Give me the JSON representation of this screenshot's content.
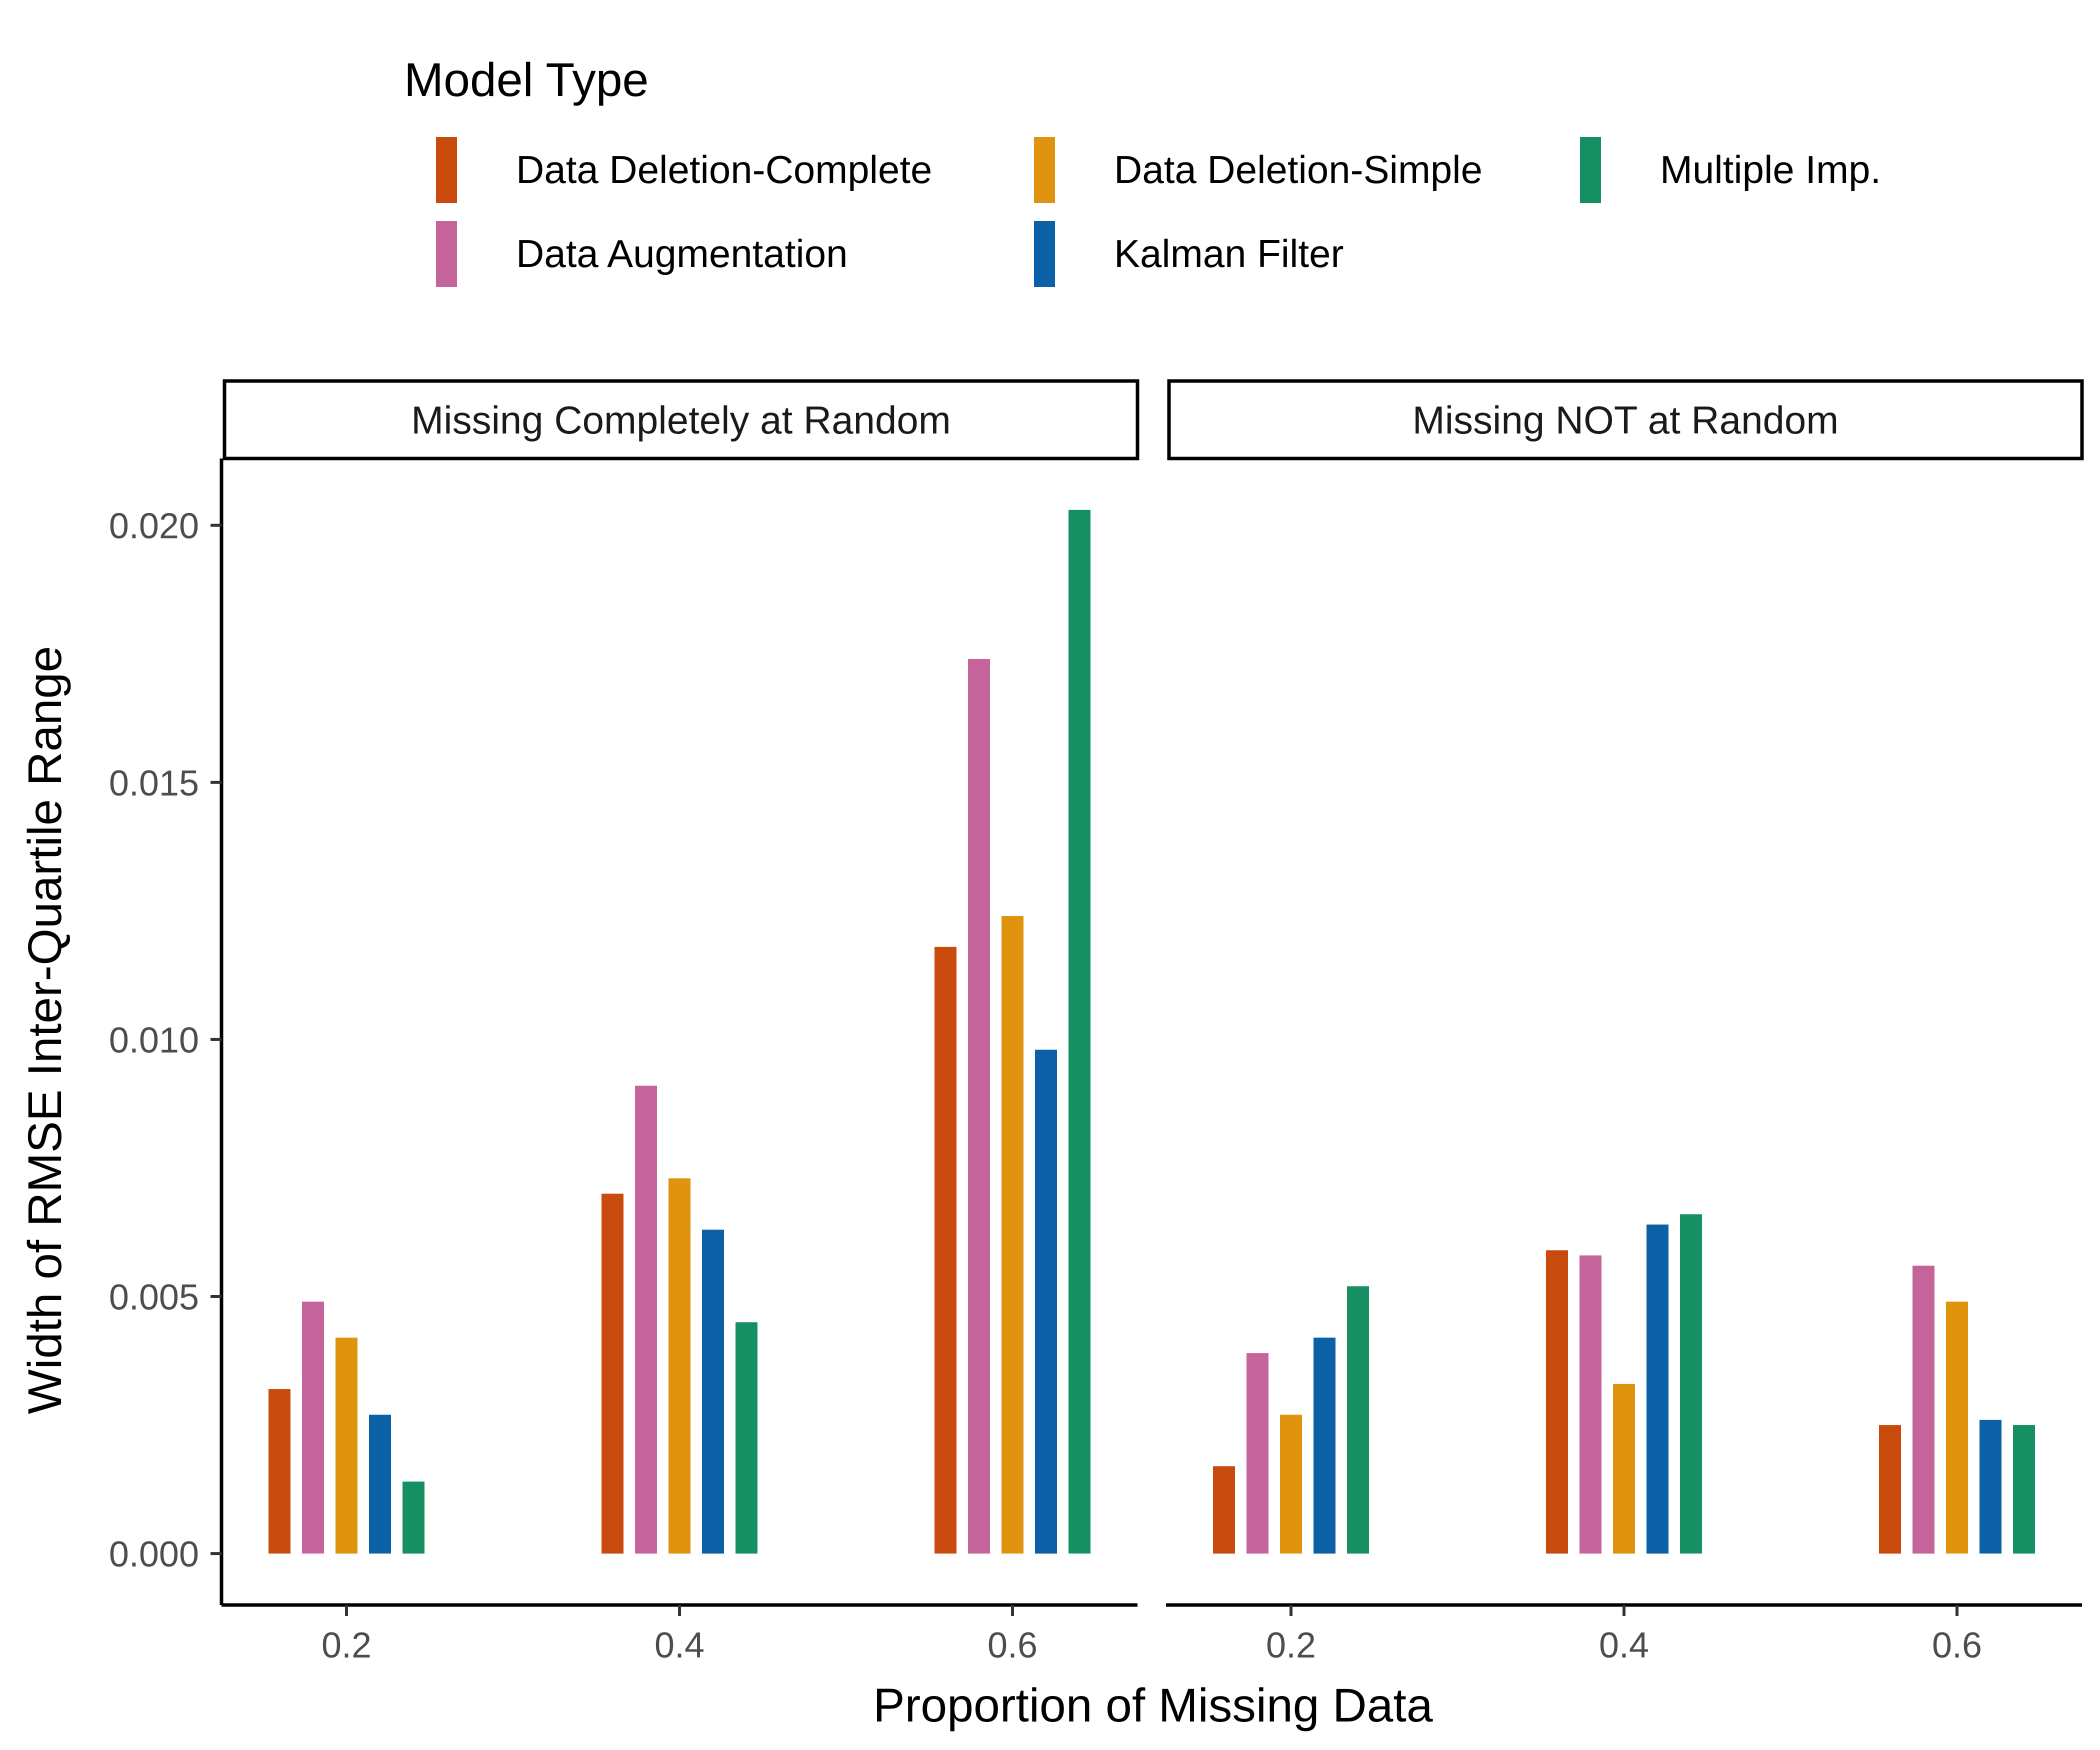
{
  "chart_data": {
    "type": "bar",
    "legend": {
      "title": "Model Type",
      "placement": "top",
      "entries": [
        {
          "name": "Data Deletion-Complete",
          "color": "#C84A0C"
        },
        {
          "name": "Data Deletion-Simple",
          "color": "#E0930F"
        },
        {
          "name": "Multiple Imp.",
          "color": "#168F62"
        },
        {
          "name": "Data Augmentation",
          "color": "#C4649A"
        },
        {
          "name": "Kalman Filter",
          "color": "#0C60A5"
        }
      ]
    },
    "xlabel": "Proportion of Missing Data",
    "ylabel": "Width of RMSE Inter-Quartile Range",
    "ylim": [
      -0.001,
      0.0213
    ],
    "yticks": [
      "0.000",
      "0.005",
      "0.010",
      "0.015",
      "0.020"
    ],
    "ytick_values": [
      0,
      0.005,
      0.01,
      0.015,
      0.02
    ],
    "categories": [
      "0.2",
      "0.4",
      "0.6"
    ],
    "grid": false,
    "series_order": [
      "Data Deletion-Complete",
      "Data Augmentation",
      "Data Deletion-Simple",
      "Kalman Filter",
      "Multiple Imp."
    ],
    "facets": [
      {
        "label": "Missing Completely at Random",
        "series": [
          {
            "name": "Data Deletion-Complete",
            "values": [
              0.0032,
              0.007,
              0.0118
            ]
          },
          {
            "name": "Data Augmentation",
            "values": [
              0.0049,
              0.0091,
              0.0174
            ]
          },
          {
            "name": "Data Deletion-Simple",
            "values": [
              0.0042,
              0.0073,
              0.0124
            ]
          },
          {
            "name": "Kalman Filter",
            "values": [
              0.0027,
              0.0063,
              0.0098
            ]
          },
          {
            "name": "Multiple Imp.",
            "values": [
              0.0014,
              0.0045,
              0.0203
            ]
          }
        ]
      },
      {
        "label": "Missing NOT at Random",
        "series": [
          {
            "name": "Data Deletion-Complete",
            "values": [
              0.0017,
              0.0059,
              0.0025
            ]
          },
          {
            "name": "Data Augmentation",
            "values": [
              0.0039,
              0.0058,
              0.0056
            ]
          },
          {
            "name": "Data Deletion-Simple",
            "values": [
              0.0027,
              0.0033,
              0.0049
            ]
          },
          {
            "name": "Kalman Filter",
            "values": [
              0.0042,
              0.0064,
              0.0026
            ]
          },
          {
            "name": "Multiple Imp.",
            "values": [
              0.0052,
              0.0066,
              0.0025
            ]
          }
        ]
      }
    ]
  }
}
